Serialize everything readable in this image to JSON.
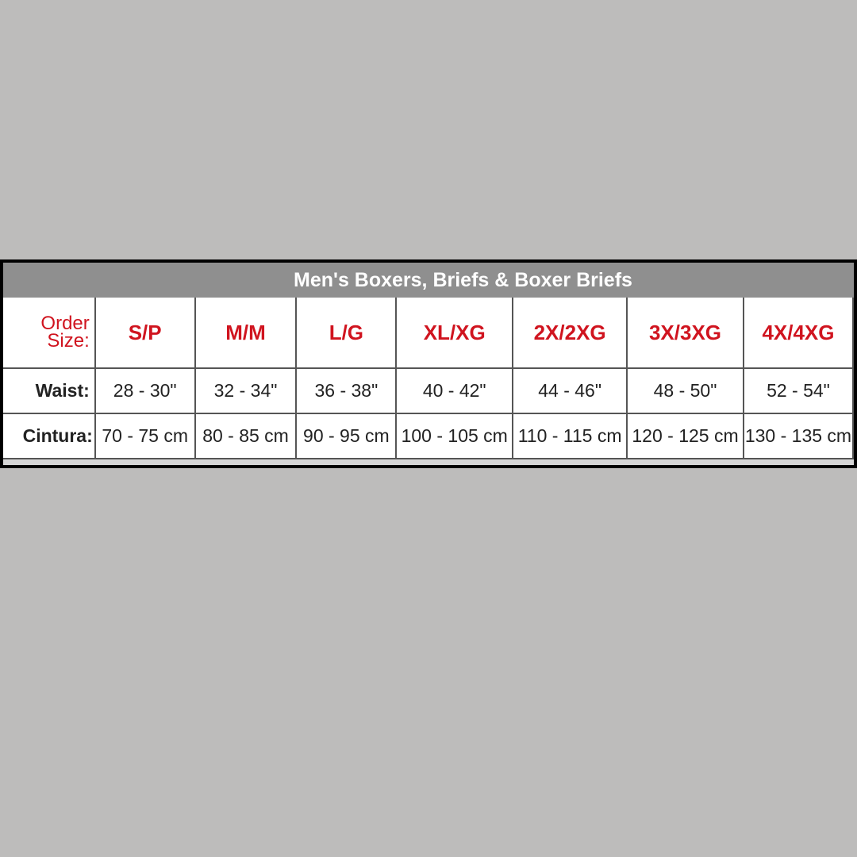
{
  "title": "Men's Boxers, Briefs & Boxer Briefs",
  "colors": {
    "size_text": "#d0141f",
    "header_bg": "#8f8f8f",
    "background": "#bdbcbb"
  },
  "row_labels": {
    "order_size_line1": "Order",
    "order_size_line2": "Size:",
    "waist": "Waist:",
    "cintura": "Cintura:"
  },
  "sizes": [
    "S/P",
    "M/M",
    "L/G",
    "XL/XG",
    "2X/2XG",
    "3X/3XG",
    "4X/4XG"
  ],
  "waist": [
    "28 - 30\"",
    "32 - 34\"",
    "36 - 38\"",
    "40 - 42\"",
    "44 - 46\"",
    "48 - 50\"",
    "52 - 54\""
  ],
  "cintura": [
    "70 - 75 cm",
    "80 - 85 cm",
    "90 - 95 cm",
    "100 - 105 cm",
    "110 - 115 cm",
    "120 - 125 cm",
    "130 - 135 cm"
  ]
}
